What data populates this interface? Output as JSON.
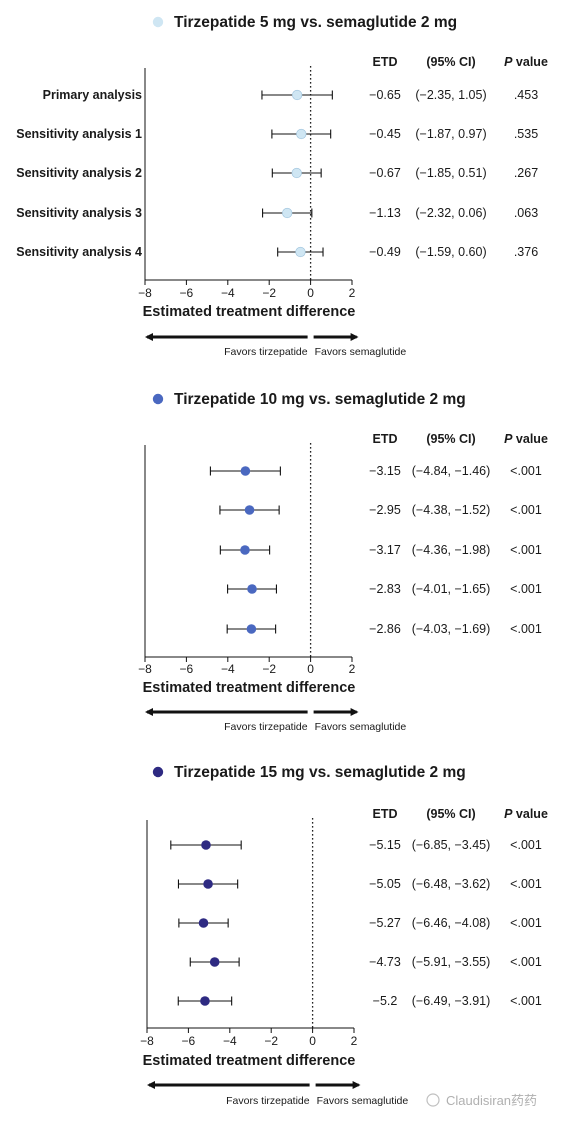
{
  "chart_data": [
    {
      "type": "forest",
      "title": "Tirzepatide 5 mg vs. semaglutide 2 mg",
      "marker_color": "#cfe6f3",
      "row_labels": [
        "Primary analysis",
        "Sensitivity analysis 1",
        "Sensitivity analysis 2",
        "Sensitivity analysis 3",
        "Sensitivity analysis 4"
      ],
      "columns": {
        "etd": "ETD",
        "ci": "(95% CI)",
        "p_italic": "P",
        "p_rest": " value"
      },
      "rows": [
        {
          "etd": -0.65,
          "lo": -2.35,
          "hi": 1.05,
          "etd_text": "−0.65",
          "ci_text": "(−2.35, 1.05)",
          "p_text": ".453"
        },
        {
          "etd": -0.45,
          "lo": -1.87,
          "hi": 0.97,
          "etd_text": "−0.45",
          "ci_text": "(−1.87, 0.97)",
          "p_text": ".535"
        },
        {
          "etd": -0.67,
          "lo": -1.85,
          "hi": 0.51,
          "etd_text": "−0.67",
          "ci_text": "(−1.85, 0.51)",
          "p_text": ".267"
        },
        {
          "etd": -1.13,
          "lo": -2.32,
          "hi": 0.06,
          "etd_text": "−1.13",
          "ci_text": "(−2.32, 0.06)",
          "p_text": ".063"
        },
        {
          "etd": -0.49,
          "lo": -1.59,
          "hi": 0.6,
          "etd_text": "−0.49",
          "ci_text": "(−1.59, 0.60)",
          "p_text": ".376"
        }
      ],
      "xlim": [
        -8,
        2
      ],
      "xticks": [
        -8,
        -6,
        -4,
        -2,
        0,
        2
      ],
      "xtick_labels": [
        "−8",
        "−6",
        "−4",
        "−2",
        "0",
        "2"
      ],
      "xlabel": "Estimated treatment difference",
      "favors_left": "Favors tirzepatide",
      "favors_right": "Favors semaglutide"
    },
    {
      "type": "forest",
      "title": "Tirzepatide 10 mg vs. semaglutide 2 mg",
      "marker_color": "#4a68c0",
      "row_labels": [],
      "columns": {
        "etd": "ETD",
        "ci": "(95% CI)",
        "p_italic": "P",
        "p_rest": " value"
      },
      "rows": [
        {
          "etd": -3.15,
          "lo": -4.84,
          "hi": -1.46,
          "etd_text": "−3.15",
          "ci_text": "(−4.84, −1.46)",
          "p_text": "<.001"
        },
        {
          "etd": -2.95,
          "lo": -4.38,
          "hi": -1.52,
          "etd_text": "−2.95",
          "ci_text": "(−4.38, −1.52)",
          "p_text": "<.001"
        },
        {
          "etd": -3.17,
          "lo": -4.36,
          "hi": -1.98,
          "etd_text": "−3.17",
          "ci_text": "(−4.36, −1.98)",
          "p_text": "<.001"
        },
        {
          "etd": -2.83,
          "lo": -4.01,
          "hi": -1.65,
          "etd_text": "−2.83",
          "ci_text": "(−4.01, −1.65)",
          "p_text": "<.001"
        },
        {
          "etd": -2.86,
          "lo": -4.03,
          "hi": -1.69,
          "etd_text": "−2.86",
          "ci_text": "(−4.03, −1.69)",
          "p_text": "<.001"
        }
      ],
      "xlim": [
        -8,
        2
      ],
      "xticks": [
        -8,
        -6,
        -4,
        -2,
        0,
        2
      ],
      "xtick_labels": [
        "−8",
        "−6",
        "−4",
        "−2",
        "0",
        "2"
      ],
      "xlabel": "Estimated treatment difference",
      "favors_left": "Favors tirzepatide",
      "favors_right": "Favors semaglutide"
    },
    {
      "type": "forest",
      "title": "Tirzepatide 15 mg vs. semaglutide 2 mg",
      "marker_color": "#2e2a82",
      "row_labels": [],
      "columns": {
        "etd": "ETD",
        "ci": "(95% CI)",
        "p_italic": "P",
        "p_rest": " value"
      },
      "rows": [
        {
          "etd": -5.15,
          "lo": -6.85,
          "hi": -3.45,
          "etd_text": "−5.15",
          "ci_text": "(−6.85, −3.45)",
          "p_text": "<.001"
        },
        {
          "etd": -5.05,
          "lo": -6.48,
          "hi": -3.62,
          "etd_text": "−5.05",
          "ci_text": "(−6.48, −3.62)",
          "p_text": "<.001"
        },
        {
          "etd": -5.27,
          "lo": -6.46,
          "hi": -4.08,
          "etd_text": "−5.27",
          "ci_text": "(−6.46, −4.08)",
          "p_text": "<.001"
        },
        {
          "etd": -4.73,
          "lo": -5.91,
          "hi": -3.55,
          "etd_text": "−4.73",
          "ci_text": "(−5.91, −3.55)",
          "p_text": "<.001"
        },
        {
          "etd": -5.2,
          "lo": -6.49,
          "hi": -3.91,
          "etd_text": "−5.2",
          "ci_text": "(−6.49, −3.91)",
          "p_text": "<.001"
        }
      ],
      "xlim": [
        -8,
        2
      ],
      "xticks": [
        -8,
        -6,
        -4,
        -2,
        0,
        2
      ],
      "xtick_labels": [
        "−8",
        "−6",
        "−4",
        "−2",
        "0",
        "2"
      ],
      "xlabel": "Estimated treatment difference",
      "favors_left": "Favors tirzepatide",
      "favors_right": "Favors semaglutide"
    }
  ],
  "watermark": "Claudisiran药药"
}
